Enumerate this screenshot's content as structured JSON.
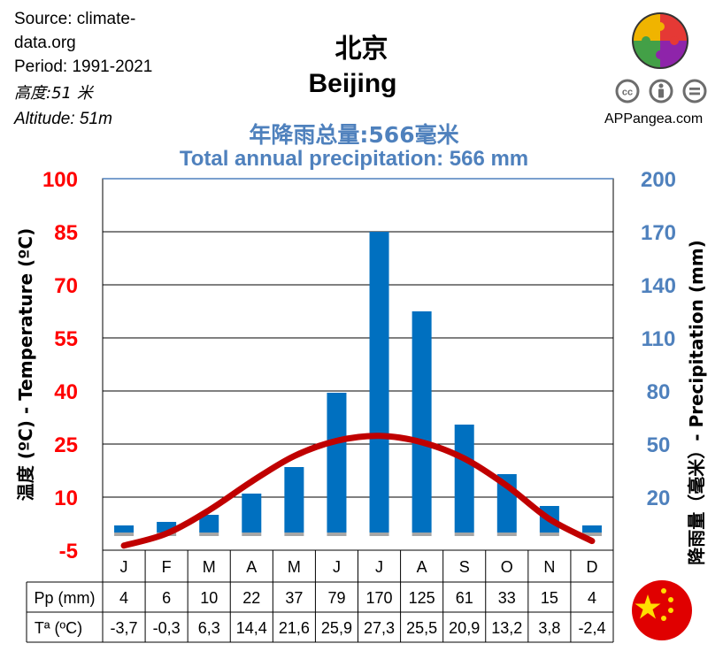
{
  "source": {
    "line1": "Source: climate-",
    "line2": "data.org",
    "period": "Period: 1991-2021",
    "altitude_cn": "高度:51 米",
    "altitude_en": "Altitude: 51m"
  },
  "title": {
    "chinese": "北京",
    "english": "Beijing"
  },
  "total": {
    "chinese": "年降雨总量:566毫米",
    "english": "Total annual precipitation: 566 mm"
  },
  "brand": {
    "site": "APPangea.com",
    "license_icons": [
      "cc-icon",
      "by-icon",
      "nd-icon"
    ]
  },
  "colors": {
    "temperature": "#c00000",
    "precipitation": "#0070c0",
    "axis_left": "#ff0000",
    "axis_right": "#4f81bd",
    "grid": "#000000"
  },
  "chart_data": {
    "type": "bar",
    "categories": [
      "J",
      "F",
      "M",
      "A",
      "M",
      "J",
      "J",
      "A",
      "S",
      "O",
      "N",
      "D"
    ],
    "series": [
      {
        "values": [
          4,
          6,
          10,
          22,
          37,
          79,
          170,
          125,
          61,
          33,
          15,
          4
        ],
        "axis": "right",
        "kind": "bar"
      },
      {
        "values": [
          -3.7,
          -0.3,
          6.3,
          14.4,
          21.6,
          25.9,
          27.3,
          25.5,
          20.9,
          13.2,
          3.8,
          -2.4
        ],
        "axis": "left",
        "kind": "line"
      }
    ],
    "y_left": {
      "label": "温度 (ºC) - Temperature  (ºC)",
      "ticks": [
        "-5",
        "10",
        "25",
        "40",
        "55",
        "70",
        "85",
        "100"
      ],
      "ylim": [
        -5,
        100
      ]
    },
    "y_right": {
      "label": "降雨量（毫米）- Precipitation  (mm)",
      "ticks": [
        "20",
        "50",
        "80",
        "110",
        "140",
        "170",
        "200"
      ],
      "ylim": [
        -10,
        200
      ]
    },
    "grid": "horizontal",
    "table": {
      "row_labels": [
        "Pp (mm)",
        "Tª (ºC)"
      ],
      "pp": [
        "4",
        "6",
        "10",
        "22",
        "37",
        "79",
        "170",
        "125",
        "61",
        "33",
        "15",
        "4"
      ],
      "temp": [
        "-3,7",
        "-0,3",
        "6,3",
        "14,4",
        "21,6",
        "25,9",
        "27,3",
        "25,5",
        "20,9",
        "13,2",
        "3,8",
        "-2,4"
      ]
    }
  }
}
